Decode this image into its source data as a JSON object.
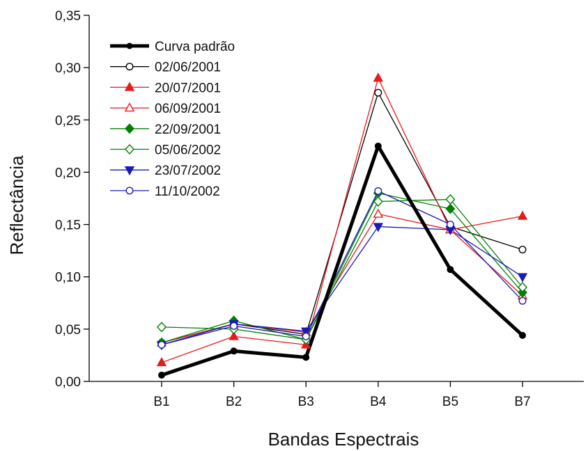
{
  "chart_data": {
    "type": "line",
    "xlabel": "Bandas Espectrais",
    "ylabel": "Reflectância",
    "categories": [
      "B1",
      "B2",
      "B3",
      "B4",
      "B5",
      "B7"
    ],
    "ylim": [
      0,
      0.35
    ],
    "y_ticks": [
      "0,00",
      "0,05",
      "0,10",
      "0,15",
      "0,20",
      "0,25",
      "0,30",
      "0,35"
    ],
    "legend_position": "top-left",
    "grid": false,
    "series": [
      {
        "name": "Curva padrão",
        "color": "#000000",
        "marker": "filled-circle",
        "values": [
          0.006,
          0.029,
          0.023,
          0.225,
          0.107,
          0.044
        ]
      },
      {
        "name": "02/06/2001",
        "color": "#000000",
        "marker": "open-circle",
        "values": [
          0.037,
          0.055,
          0.045,
          0.276,
          0.148,
          0.126
        ]
      },
      {
        "name": "20/07/2001",
        "color": "#e8191b",
        "marker": "filled-triangle-up",
        "values": [
          0.018,
          0.043,
          0.035,
          0.29,
          0.145,
          0.158
        ]
      },
      {
        "name": "06/09/2001",
        "color": "#e8191b",
        "marker": "open-triangle-up",
        "values": [
          0.037,
          0.055,
          0.047,
          0.16,
          0.145,
          0.082
        ]
      },
      {
        "name": "22/09/2001",
        "color": "#008000",
        "marker": "filled-diamond",
        "values": [
          0.037,
          0.058,
          0.04,
          0.18,
          0.165,
          0.085
        ]
      },
      {
        "name": "05/06/2002",
        "color": "#008000",
        "marker": "open-diamond",
        "values": [
          0.052,
          0.05,
          0.04,
          0.172,
          0.174,
          0.09
        ]
      },
      {
        "name": "23/07/2002",
        "color": "#1a1ab8",
        "marker": "filled-triangle-down",
        "values": [
          0.035,
          0.055,
          0.048,
          0.148,
          0.145,
          0.1
        ]
      },
      {
        "name": "11/10/2002",
        "color": "#1a1ab8",
        "marker": "open-circle",
        "values": [
          0.035,
          0.053,
          0.043,
          0.182,
          0.15,
          0.077
        ]
      }
    ]
  }
}
